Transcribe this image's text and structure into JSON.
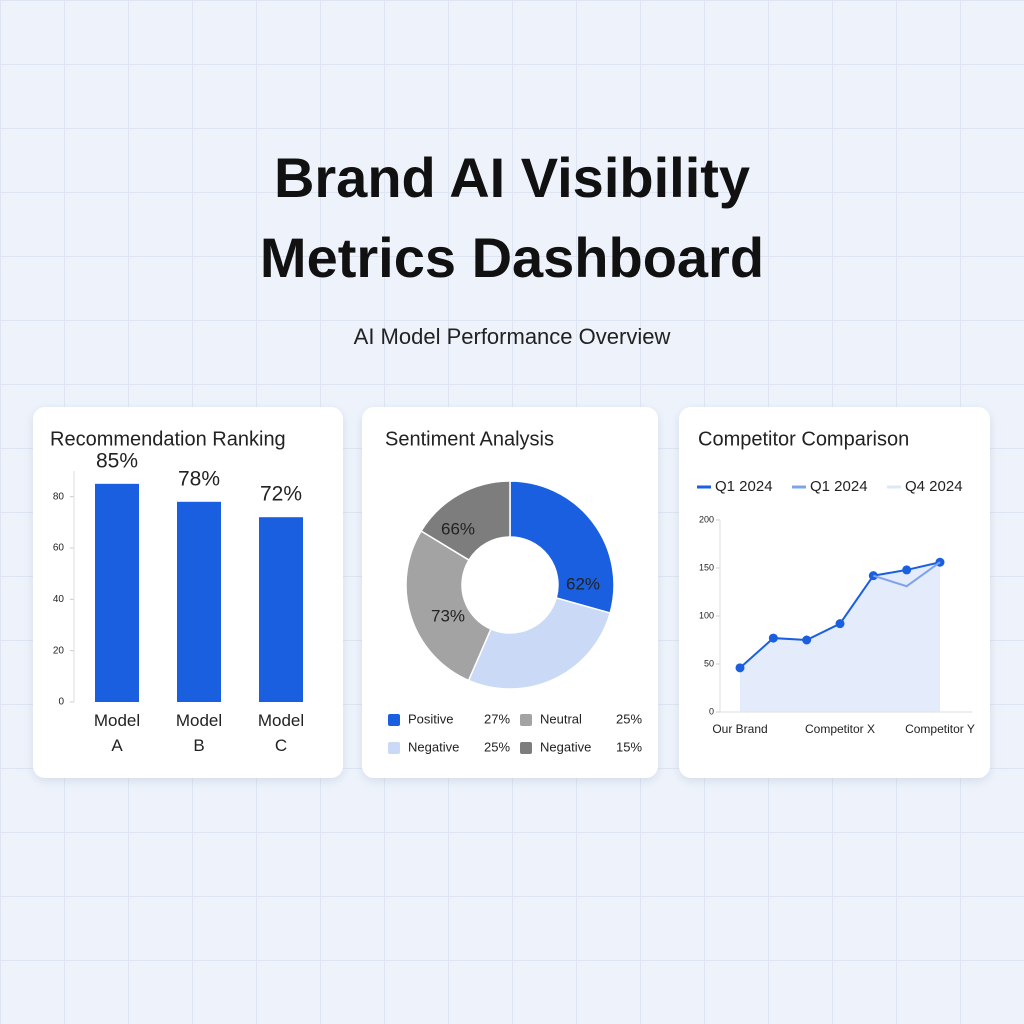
{
  "header": {
    "title": "Brand AI Visibility Metrics Dashboard",
    "subtitle": "AI Model Performance Overview"
  },
  "chart_data": [
    {
      "type": "bar",
      "title": "Recommendation Ranking",
      "categories": [
        "Model A",
        "Model B",
        "Model C"
      ],
      "values": [
        85,
        78,
        72
      ],
      "value_labels": [
        "85%",
        "78%",
        "72%"
      ],
      "color": "#1a5fe0",
      "ylim": [
        0,
        90
      ],
      "yticks": [
        0,
        20,
        40,
        60,
        80
      ]
    },
    {
      "type": "donut",
      "title": "Sentiment Analysis",
      "categories": [
        "Positive",
        "Negative",
        "Neutral",
        "Negative"
      ],
      "values": [
        27,
        25,
        25,
        15
      ],
      "value_labels": [
        "27%",
        "25%",
        "25%",
        "15%"
      ],
      "colors": [
        "#1a5fe0",
        "#c9d9f6",
        "#a3a3a3",
        "#7d7d7d"
      ],
      "annotations": [
        "66%",
        "73%",
        "62%"
      ]
    },
    {
      "type": "line",
      "title": "Competitor Comparison",
      "categories": [
        "Our Brand",
        null,
        null,
        "Competitor X",
        null,
        null,
        "Competitor Y"
      ],
      "series": [
        {
          "name": "Q1 2024",
          "color": "#1a5fe0",
          "values": [
            46,
            77,
            75,
            92,
            142,
            148,
            156
          ],
          "markers": true
        },
        {
          "name": "Q1 2024",
          "color": "#7fa3ea",
          "values": [
            null,
            null,
            null,
            null,
            142,
            131,
            156
          ]
        },
        {
          "name": "Q4 2024",
          "color": "#dde7fa",
          "values": [
            46,
            77,
            75,
            92,
            142,
            148,
            156
          ],
          "fill": true
        }
      ],
      "ylim": [
        0,
        200
      ],
      "yticks": [
        0,
        50,
        100,
        150,
        200
      ]
    }
  ]
}
